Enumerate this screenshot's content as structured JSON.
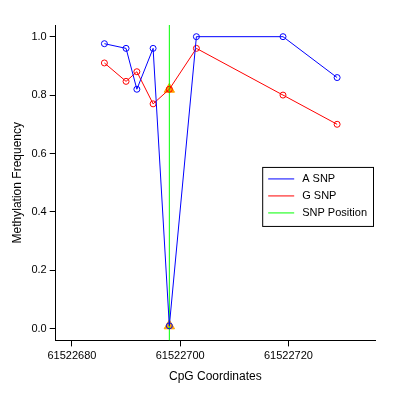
{
  "chart_data": {
    "type": "line",
    "x_label": "CpG Coordinates",
    "y_label": "Methylation Frequency",
    "xlim": [
      61522677,
      61522736
    ],
    "xticks": [
      61522680,
      61522700,
      61522720
    ],
    "ylim": [
      -0.04,
      1.04
    ],
    "yticks": [
      {
        "value": 0,
        "label": "0.0"
      },
      0.2,
      0.4,
      0.6,
      0.8,
      {
        "value": 1,
        "label": "1.0"
      }
    ],
    "grid": false,
    "legend": "right",
    "series": [
      {
        "name": "A SNP",
        "color": "#0000ff",
        "marker": "circle",
        "line_style": "solid",
        "x": [
          61522686,
          61522690,
          61522692,
          61522695,
          61522698,
          61522703,
          61522719,
          61522729
        ],
        "values": [
          0.976,
          0.96,
          0.82,
          0.96,
          0.01,
          1.0,
          1.0,
          0.86
        ]
      },
      {
        "name": "G SNP",
        "color": "#ff0000",
        "marker": "circle",
        "line_style": "solid",
        "x": [
          61522686,
          61522690,
          61522692,
          61522695,
          61522698,
          61522703,
          61522719,
          61522729
        ],
        "values": [
          0.91,
          0.847,
          0.88,
          0.77,
          0.82,
          0.96,
          0.8,
          0.7
        ]
      },
      {
        "name": "SNP Position",
        "color": "#00ff00",
        "marker": "none",
        "line_style": "solid",
        "x": [
          61522698,
          61522698
        ],
        "values": [
          -0.04,
          1.04
        ]
      },
      {
        "color": "#ffa500",
        "marker": "triangle",
        "line_style": "none",
        "x": [
          61522698,
          61522698
        ],
        "values": [
          0.01,
          0.82
        ]
      }
    ]
  }
}
